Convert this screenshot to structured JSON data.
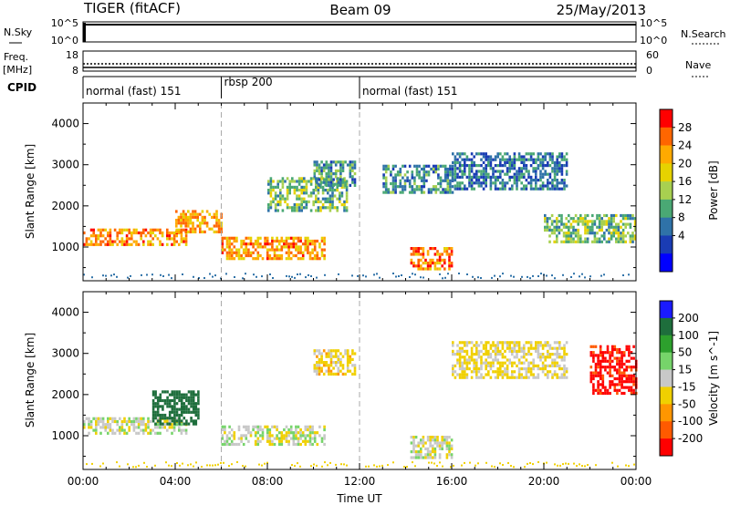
{
  "header": {
    "radar": "TIGER (fitACF)",
    "beam": "Beam 09",
    "date": "25/May/2013"
  },
  "strips": {
    "nsky_label": "N.Sky",
    "nsky_ticks": [
      "10^5",
      "10^0"
    ],
    "nsearch_label": "N.Search",
    "nsearch_ticks": [
      "10^5",
      "10^0"
    ],
    "freq_label": "Freq.",
    "freq_unit": "[MHz]",
    "freq_ticks": [
      "18",
      "8"
    ],
    "nave_label": "Nave",
    "nave_ticks": [
      "60",
      "0"
    ],
    "cpid_label": "CPID",
    "cpid_segments": [
      {
        "label": "normal (fast) 151",
        "start_hour": 0,
        "end_hour": 6
      },
      {
        "label": "rbsp 200",
        "start_hour": 6,
        "end_hour": 12
      },
      {
        "label": "normal (fast) 151",
        "start_hour": 12,
        "end_hour": 24
      }
    ]
  },
  "axes": {
    "xlabel": "Time UT",
    "x_ticks": [
      "00:00",
      "04:00",
      "08:00",
      "12:00",
      "16:00",
      "20:00",
      "00:00"
    ],
    "ylabel": "Slant Range [km]",
    "y_ticks": [
      "4000",
      "3000",
      "2000",
      "1000"
    ]
  },
  "colorbars": {
    "power": {
      "label": "Power [dB]",
      "ticks": [
        "28",
        "24",
        "20",
        "16",
        "12",
        "8",
        "4"
      ],
      "colors": [
        "#ff0000",
        "#ff6600",
        "#ffaa00",
        "#e6d200",
        "#a8d050",
        "#4aa874",
        "#2f72a8",
        "#1a3cb4",
        "#0000ff"
      ]
    },
    "velocity": {
      "label": "Velocity [m s^-1]",
      "ticks": [
        "200",
        "100",
        "50",
        "15",
        "-15",
        "-50",
        "-100",
        "-200"
      ],
      "colors": [
        "#1a1aff",
        "#1e6e3c",
        "#2da02d",
        "#76d46a",
        "#c8c8c8",
        "#f0d000",
        "#ff9600",
        "#ff5a00",
        "#ff0000"
      ]
    }
  },
  "chart_data": [
    {
      "type": "heatmap",
      "title": "TIGER (fitACF) Beam 09 25/May/2013",
      "quantity": "Power",
      "xlabel": "Time UT",
      "ylabel": "Slant Range [km]",
      "xlim_hours": [
        0,
        24
      ],
      "ylim_km": [
        180,
        4500
      ],
      "colorbar_label": "Power [dB]",
      "colorbar_range": [
        0,
        32
      ],
      "scatter_regions": [
        {
          "t0": 0.0,
          "t1": 4.5,
          "r0": 1050,
          "r1": 1450,
          "value": 26
        },
        {
          "t0": 4.0,
          "t1": 6.0,
          "r0": 1350,
          "r1": 1900,
          "value": 24
        },
        {
          "t0": 6.0,
          "t1": 10.5,
          "r0": 750,
          "r1": 1250,
          "value": 25
        },
        {
          "t0": 8.0,
          "t1": 11.5,
          "r0": 1900,
          "r1": 2700,
          "value": 14
        },
        {
          "t0": 10.0,
          "t1": 11.8,
          "r0": 2500,
          "r1": 3100,
          "value": 10
        },
        {
          "t0": 14.2,
          "t1": 16.0,
          "r0": 500,
          "r1": 1000,
          "value": 26
        },
        {
          "t0": 13.0,
          "t1": 16.0,
          "r0": 2300,
          "r1": 3000,
          "value": 9
        },
        {
          "t0": 16.0,
          "t1": 21.0,
          "r0": 2400,
          "r1": 3300,
          "value": 8
        },
        {
          "t0": 20.0,
          "t1": 24.0,
          "r0": 1100,
          "r1": 1800,
          "value": 14
        }
      ]
    },
    {
      "type": "heatmap",
      "quantity": "Velocity",
      "xlabel": "Time UT",
      "ylabel": "Slant Range [km]",
      "xlim_hours": [
        0,
        24
      ],
      "ylim_km": [
        180,
        4500
      ],
      "colorbar_label": "Velocity [m s^-1]",
      "colorbar_range": [
        -250,
        250
      ],
      "scatter_regions": [
        {
          "t0": 0.0,
          "t1": 4.5,
          "r0": 1050,
          "r1": 1450,
          "value": 0
        },
        {
          "t0": 3.0,
          "t1": 5.0,
          "r0": 1300,
          "r1": 2100,
          "value": 150
        },
        {
          "t0": 6.0,
          "t1": 10.5,
          "r0": 800,
          "r1": 1250,
          "value": 0
        },
        {
          "t0": 10.0,
          "t1": 11.8,
          "r0": 2500,
          "r1": 3100,
          "value": -30
        },
        {
          "t0": 14.2,
          "t1": 16.0,
          "r0": 500,
          "r1": 1000,
          "value": 0
        },
        {
          "t0": 16.0,
          "t1": 21.0,
          "r0": 2400,
          "r1": 3300,
          "value": -20
        },
        {
          "t0": 22.0,
          "t1": 24.0,
          "r0": 2000,
          "r1": 3200,
          "value": -220
        }
      ]
    }
  ]
}
